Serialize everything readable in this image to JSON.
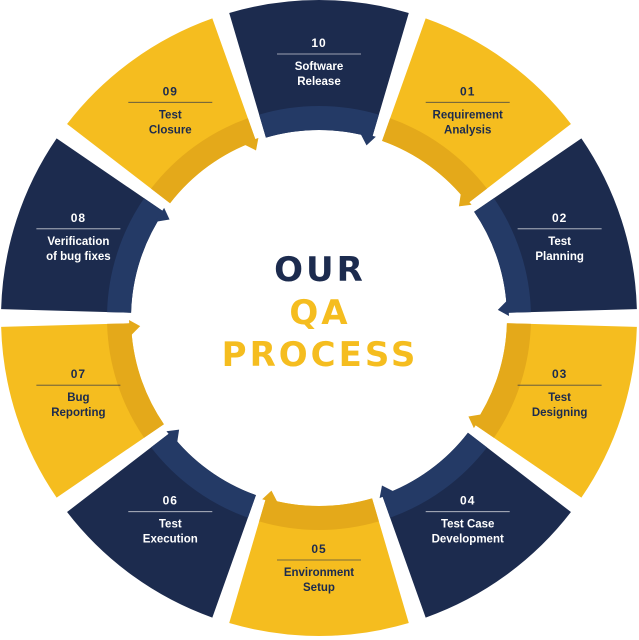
{
  "title": {
    "line1": "OUR",
    "line2": "QA",
    "line3": "PROCESS"
  },
  "colors": {
    "navy": "#1c2b4e",
    "navy_inner": "#243a66",
    "yellow": "#f5bd1f",
    "yellow_inner": "#e4a91a",
    "text_on_navy": "#ffffff",
    "text_on_yellow": "#1c2b4e"
  },
  "steps": [
    {
      "num": "01",
      "lines": [
        "Requirement",
        "Analysis"
      ],
      "color": "yellow"
    },
    {
      "num": "02",
      "lines": [
        "Test",
        "Planning"
      ],
      "color": "navy"
    },
    {
      "num": "03",
      "lines": [
        "Test",
        "Designing"
      ],
      "color": "yellow"
    },
    {
      "num": "04",
      "lines": [
        "Test Case",
        "Development"
      ],
      "color": "navy"
    },
    {
      "num": "05",
      "lines": [
        "Environment",
        "Setup"
      ],
      "color": "yellow"
    },
    {
      "num": "06",
      "lines": [
        "Test",
        "Execution"
      ],
      "color": "navy"
    },
    {
      "num": "07",
      "lines": [
        "Bug",
        "Reporting"
      ],
      "color": "yellow"
    },
    {
      "num": "08",
      "lines": [
        "Verification",
        "of bug fixes"
      ],
      "color": "navy"
    },
    {
      "num": "09",
      "lines": [
        "Test",
        "Closure"
      ],
      "color": "yellow"
    },
    {
      "num": "10",
      "lines": [
        "Software",
        "Release"
      ],
      "color": "navy"
    }
  ]
}
